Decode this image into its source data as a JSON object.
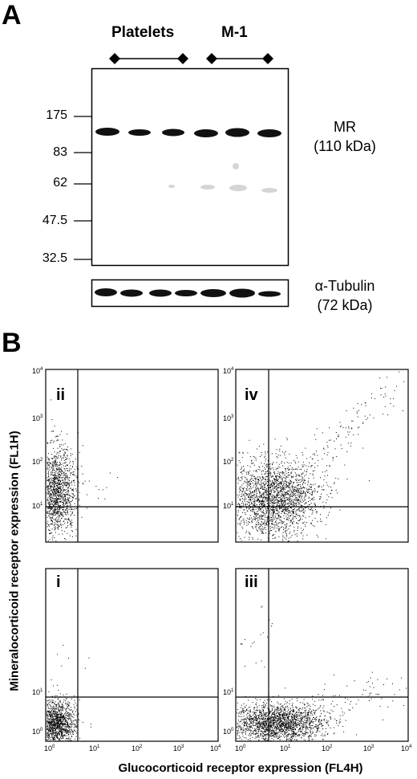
{
  "panel_a": {
    "letter": "A",
    "groups": [
      "Platelets",
      "M-1"
    ],
    "mw_markers": [
      "175",
      "83",
      "62",
      "47.5",
      "32.5"
    ],
    "mr_label": [
      "MR",
      "(110 kDa)"
    ],
    "tubulin_label": [
      "α-Tubulin",
      "(72 kDa)"
    ]
  },
  "panel_b": {
    "letter": "B",
    "quadrant_labels": {
      "top_left": "ii",
      "top_right": "iv",
      "bottom_left": "i",
      "bottom_right": "iii"
    },
    "y_axis_title": "Mineralocorticoid receptor expression (FL1H)",
    "x_axis_title": "Glucocorticoid receptor expression (FL4H)",
    "tick_base": "10",
    "tick_exponents": [
      "0",
      "1",
      "2",
      "3",
      "4"
    ],
    "upper_y_ticks": [
      "1",
      "2",
      "3",
      "4"
    ],
    "lower_y_ticks": [
      "0",
      "1"
    ]
  },
  "colors": {
    "ink": "#000000",
    "background": "#ffffff",
    "band": "#111111"
  }
}
